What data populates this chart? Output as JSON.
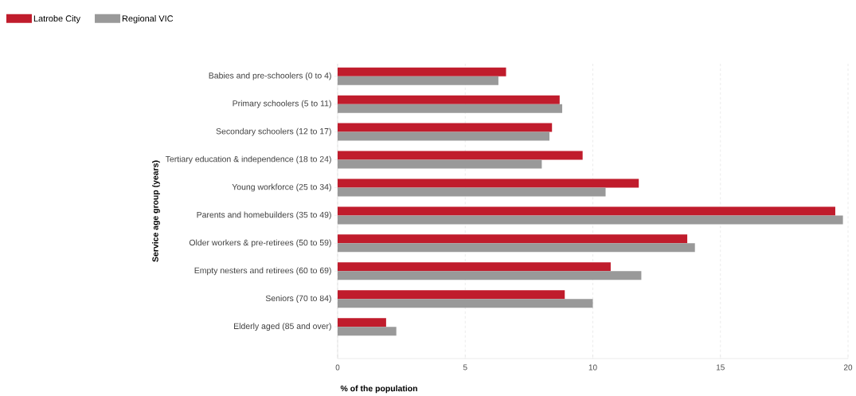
{
  "chart_data": {
    "type": "bar",
    "orientation": "horizontal",
    "xlabel": "% of the population",
    "ylabel": "Service age group (years)",
    "categories": [
      "Babies and pre-schoolers (0 to 4)",
      "Primary schoolers (5 to 11)",
      "Secondary schoolers (12 to 17)",
      "Tertiary education & independence (18 to 24)",
      "Young workforce (25 to 34)",
      "Parents and homebuilders (35 to 49)",
      "Older workers & pre-retirees (50 to 59)",
      "Empty nesters and retirees (60 to 69)",
      "Seniors (70 to 84)",
      "Elderly aged (85 and over)"
    ],
    "series": [
      {
        "name": "Latrobe City",
        "color": "#c01c2c",
        "values": [
          6.6,
          8.7,
          8.4,
          9.6,
          11.8,
          19.5,
          13.7,
          10.7,
          8.9,
          1.9
        ]
      },
      {
        "name": "Regional VIC",
        "color": "#999999",
        "values": [
          6.3,
          8.8,
          8.3,
          8.0,
          10.5,
          19.8,
          14.0,
          11.9,
          10.0,
          2.3
        ]
      }
    ],
    "xlim": [
      0,
      20
    ],
    "xticks": [
      0,
      5,
      10,
      15,
      20
    ],
    "grid": "x",
    "legend": "top left"
  }
}
